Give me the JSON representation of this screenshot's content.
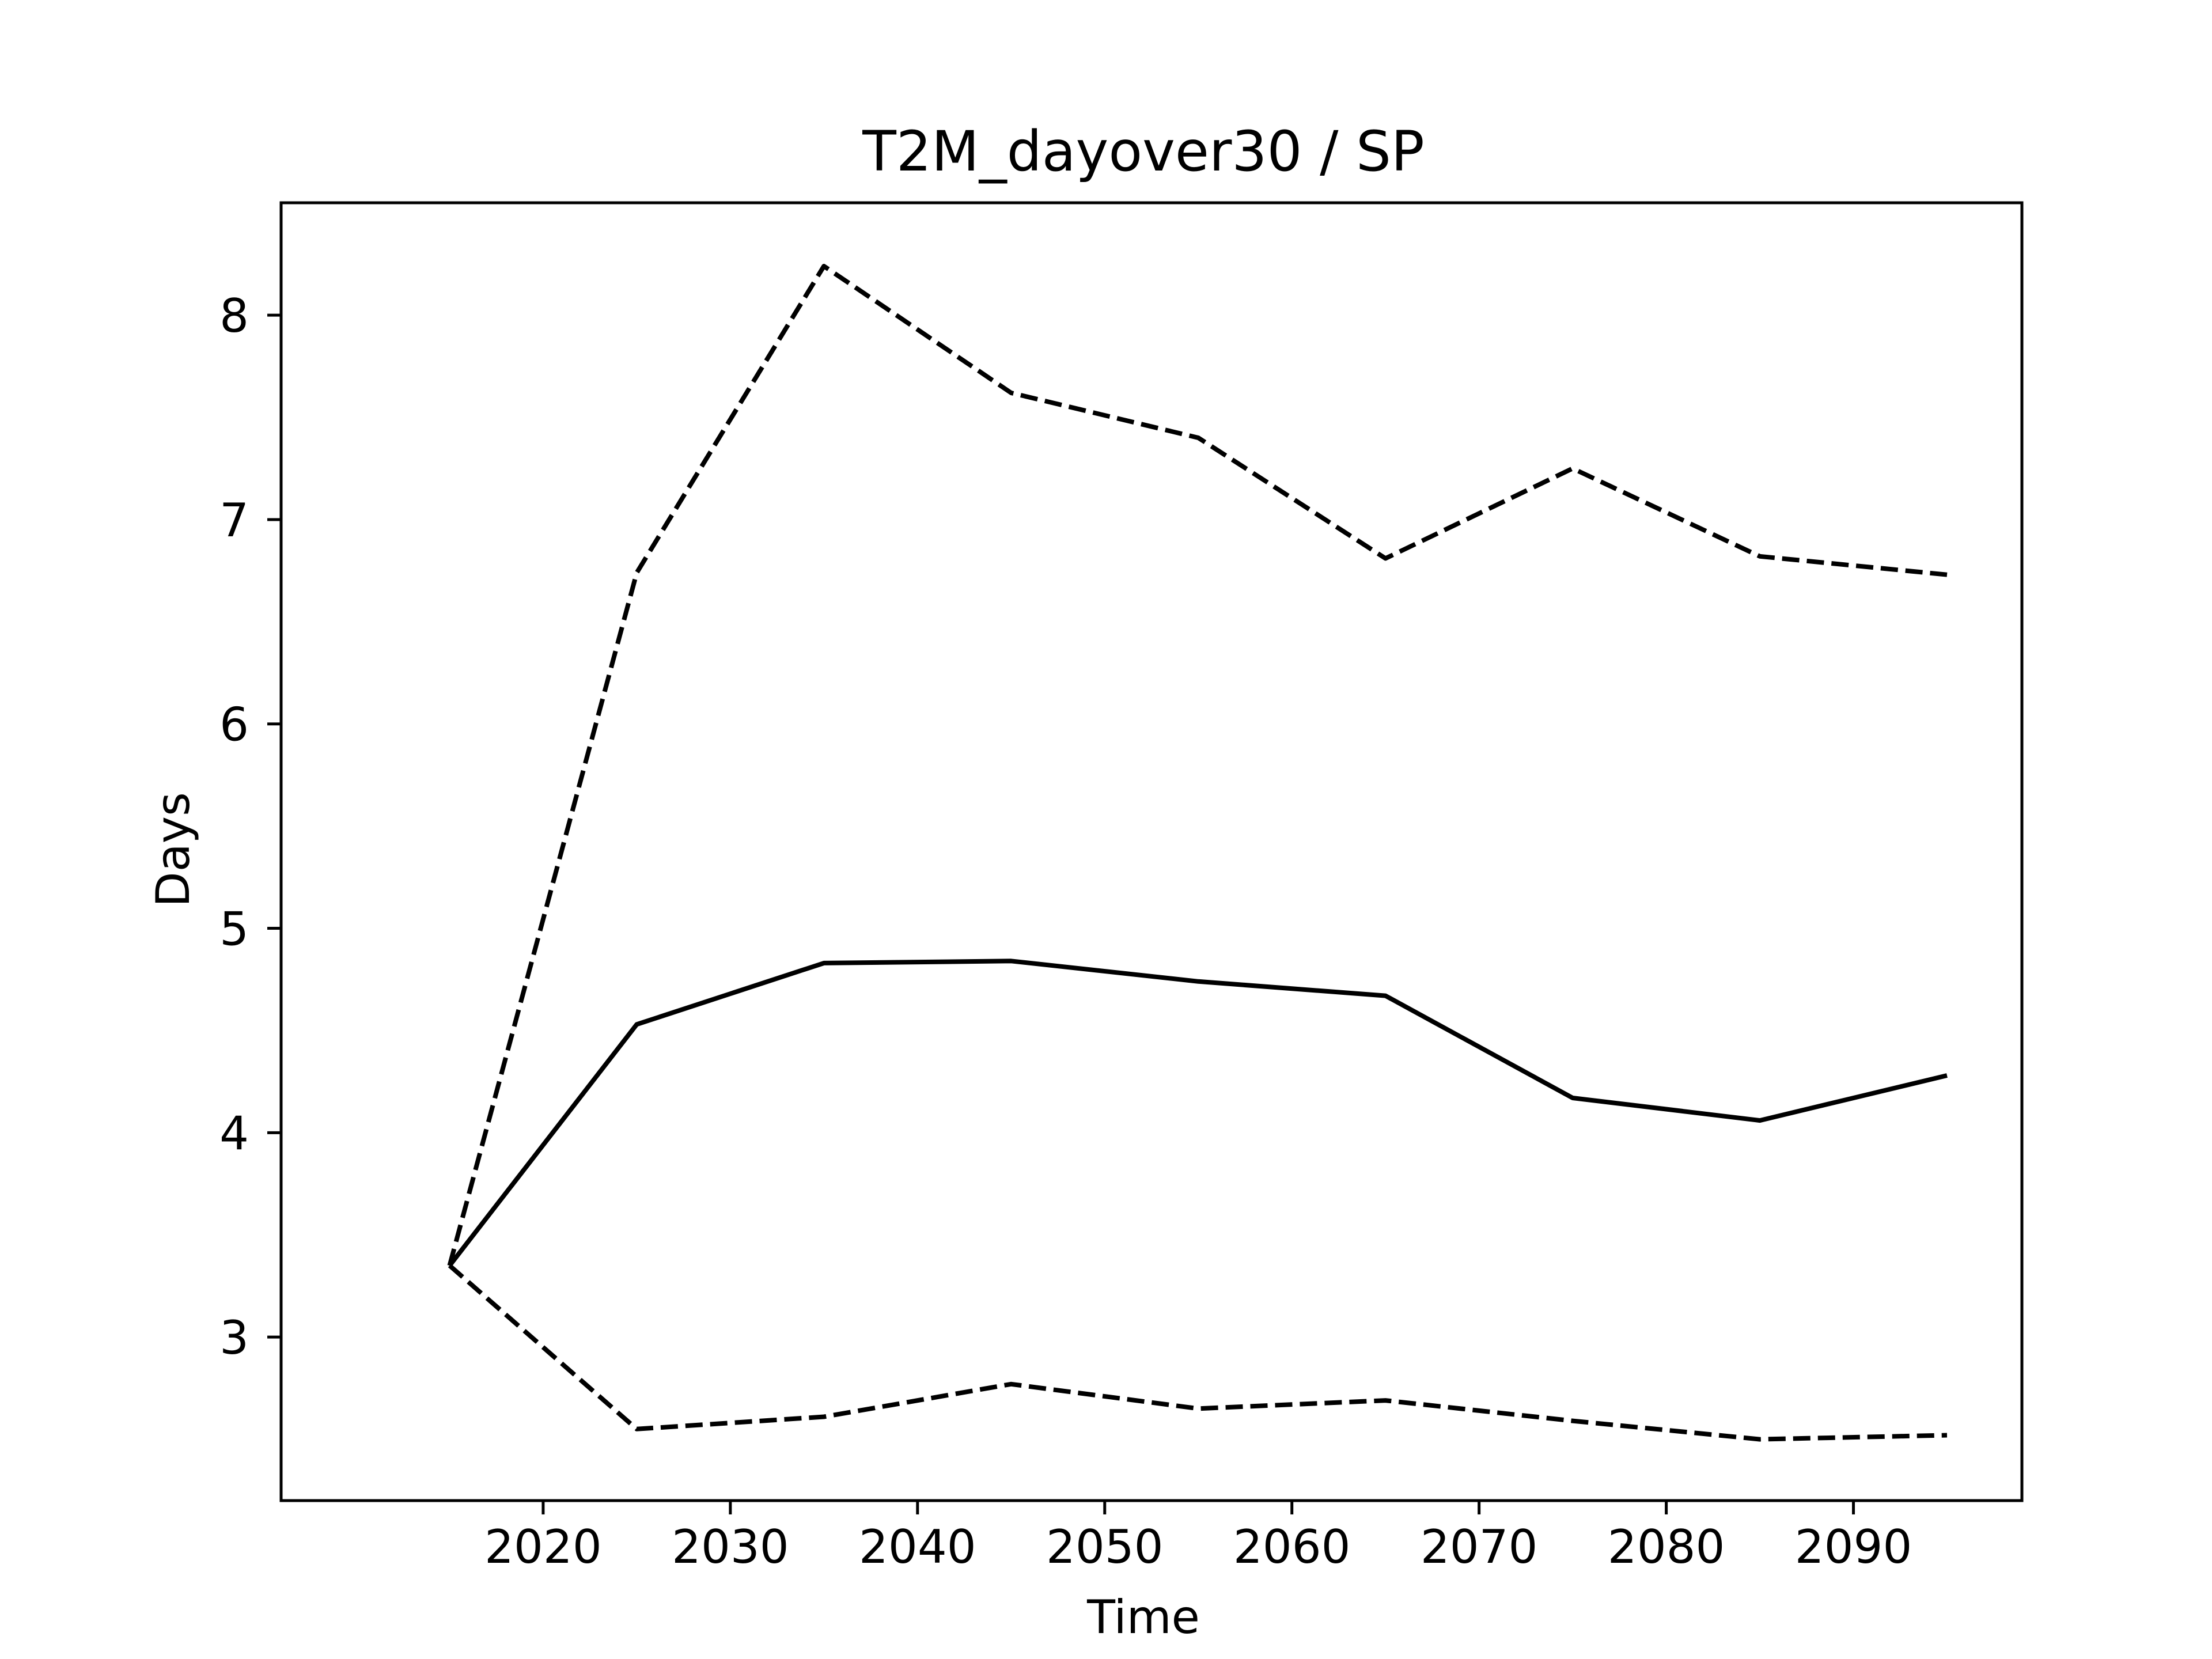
{
  "chart_data": {
    "type": "line",
    "title": "T2M_dayover30 / SP",
    "xlabel": "Time",
    "ylabel": "Days",
    "x": [
      2015,
      2025,
      2035,
      2045,
      2055,
      2065,
      2075,
      2085,
      2095
    ],
    "xlim": [
      2006,
      2099
    ],
    "ylim": [
      2.2,
      8.55
    ],
    "xticks": [
      2020,
      2030,
      2040,
      2050,
      2060,
      2070,
      2080,
      2090
    ],
    "yticks": [
      3,
      4,
      5,
      6,
      7,
      8
    ],
    "grid": false,
    "series": [
      {
        "style": "solid",
        "color": "#000000",
        "values": [
          3.35,
          4.53,
          4.83,
          4.84,
          4.74,
          4.67,
          4.17,
          4.06,
          4.28
        ]
      },
      {
        "style": "dashed",
        "color": "#000000",
        "values": [
          3.35,
          6.74,
          8.24,
          7.62,
          7.4,
          6.81,
          7.25,
          6.82,
          6.73
        ]
      },
      {
        "style": "dashed",
        "color": "#000000",
        "values": [
          3.35,
          2.55,
          2.61,
          2.77,
          2.65,
          2.69,
          2.59,
          2.5,
          2.52
        ]
      }
    ]
  }
}
